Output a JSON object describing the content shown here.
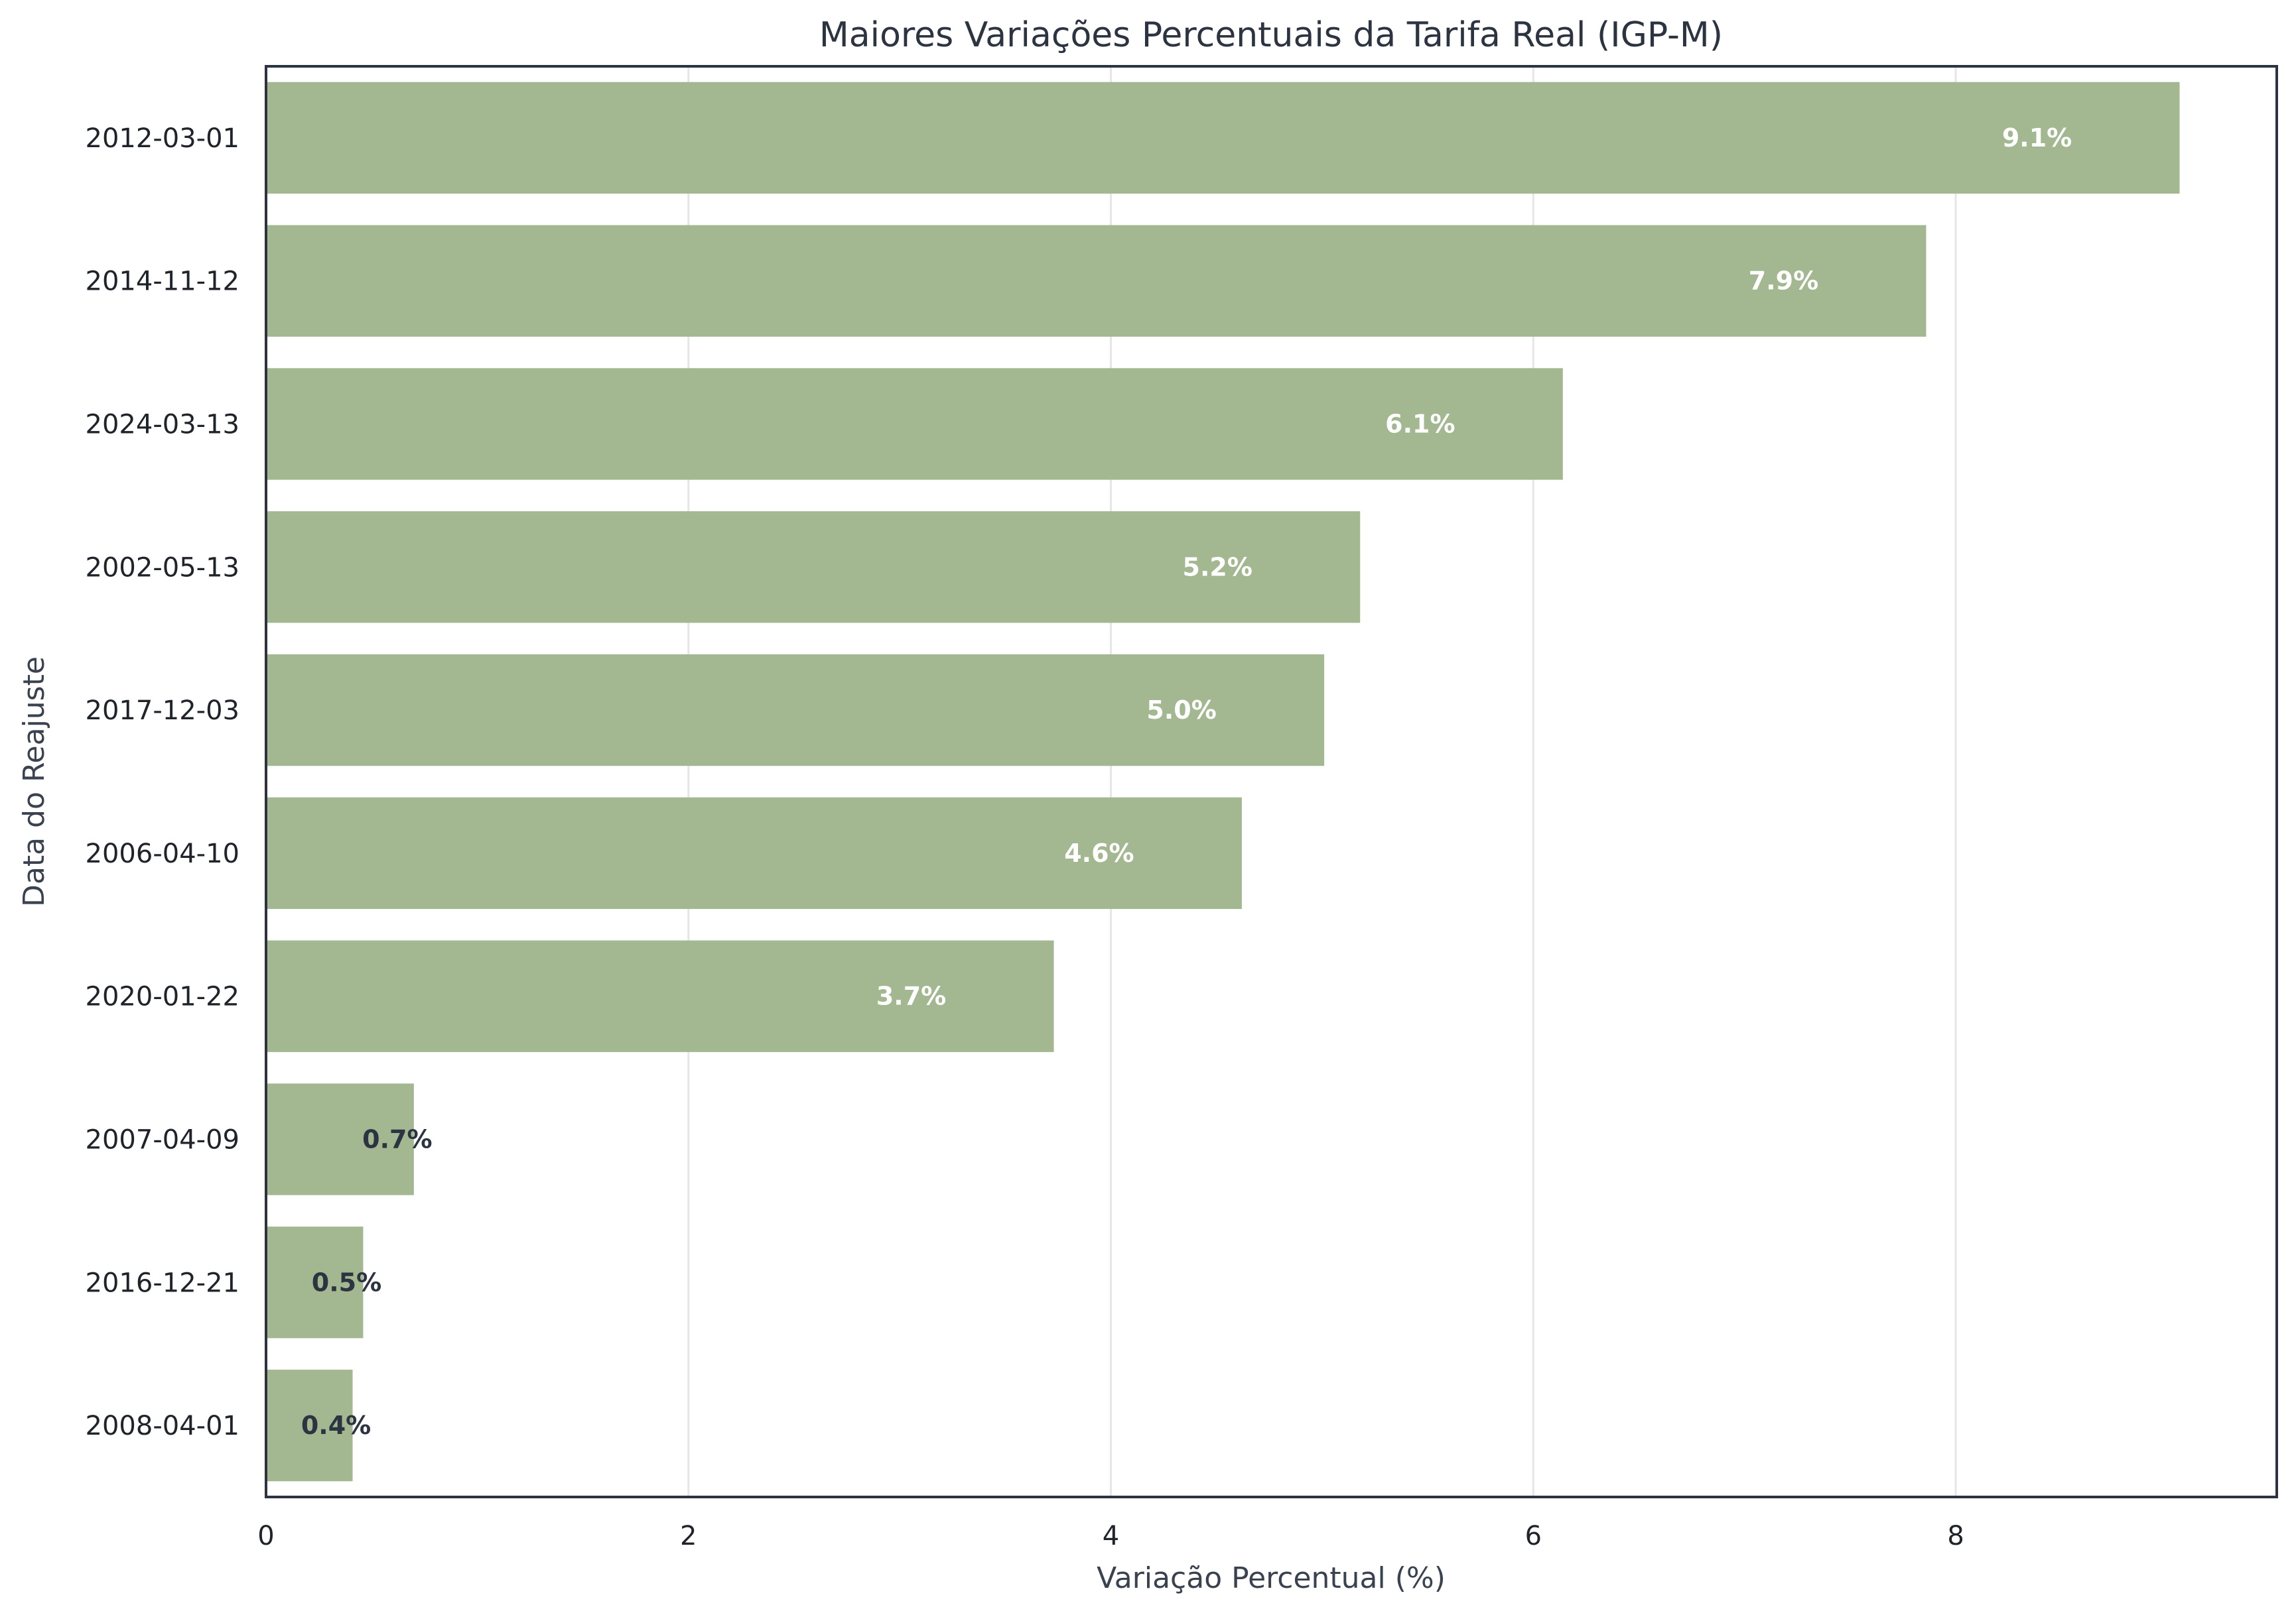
{
  "chart_data": {
    "type": "bar",
    "orientation": "horizontal",
    "title": "Maiores Variações Percentuais da Tarifa Real (IGP-M)",
    "xlabel": "Variação Percentual (%)",
    "ylabel": "Data do Reajuste",
    "categories": [
      "2012-03-01",
      "2014-11-12",
      "2024-03-13",
      "2002-05-13",
      "2017-12-03",
      "2006-04-10",
      "2020-01-22",
      "2007-04-09",
      "2016-12-21",
      "2008-04-01"
    ],
    "values": [
      9.06,
      7.86,
      6.14,
      5.18,
      5.01,
      4.62,
      3.73,
      0.7,
      0.46,
      0.41
    ],
    "data_labels": [
      "9.1%",
      "7.9%",
      "6.1%",
      "5.2%",
      "5.0%",
      "4.6%",
      "3.7%",
      "0.7%",
      "0.5%",
      "0.4%"
    ],
    "xticks": [
      0,
      2,
      4,
      6,
      8
    ],
    "xlim": [
      0,
      9.52
    ],
    "grid": "vertical",
    "bar_color": "#a3b891",
    "label_color_inside": "#ffffff",
    "label_color_small": "#2b3440"
  }
}
